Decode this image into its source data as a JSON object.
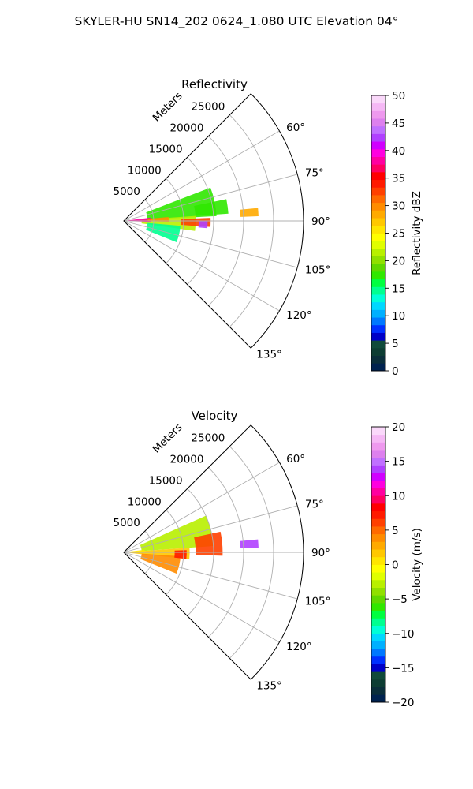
{
  "figure_title": "SKYLER-HU  SN14_202  0624_1.080 UTC Elevation 04°",
  "chart_data": [
    {
      "type": "polar-sector",
      "title": "Reflectivity",
      "theta_range_deg": [
        45,
        135
      ],
      "r_range": [
        0,
        30000
      ],
      "r_ticks": [
        5000,
        10000,
        15000,
        20000,
        25000
      ],
      "theta_ticks": [
        60,
        75,
        90,
        105,
        120,
        135
      ],
      "theta_tick_labels": [
        "60°",
        "75°",
        "90°",
        "105°",
        "120°",
        "135°"
      ],
      "r_label": "Meters",
      "grid": true,
      "colorbar": {
        "label": "Reflectivity dBZ",
        "min": 0,
        "max": 50,
        "ticks": [
          0,
          5,
          10,
          15,
          20,
          25,
          30,
          35,
          40,
          45,
          50
        ],
        "colors": [
          "#00224f",
          "#0a2e3a",
          "#0d3d33",
          "#104a3a",
          "#0000c8",
          "#0030ff",
          "#0078ff",
          "#00b0ff",
          "#00d8ff",
          "#00ffd8",
          "#00ff90",
          "#00ff40",
          "#30e800",
          "#60d800",
          "#90e000",
          "#b8f000",
          "#e0ff00",
          "#ffff00",
          "#ffe600",
          "#ffc800",
          "#ffaa00",
          "#ff8c00",
          "#ff6a00",
          "#ff4000",
          "#ff1a00",
          "#ff0000",
          "#ff0060",
          "#ff00a0",
          "#ff00e0",
          "#d000ff",
          "#b040ff",
          "#c070ff",
          "#dd80ee",
          "#ee99ee",
          "#f5b8f5",
          "#fad8fa"
        ]
      },
      "echo_regions": [
        {
          "theta": [
            69,
            87
          ],
          "r": [
            4000,
            15500
          ],
          "value": 18
        },
        {
          "theta": [
            86,
            98
          ],
          "r": [
            3000,
            12000
          ],
          "value": 22
        },
        {
          "theta": [
            95,
            112
          ],
          "r": [
            4000,
            9500
          ],
          "value": 14
        },
        {
          "theta": [
            78,
            86
          ],
          "r": [
            12000,
            17500
          ],
          "value": 18
        },
        {
          "theta": [
            83,
            92
          ],
          "r": [
            800,
            4500
          ],
          "value": 38
        },
        {
          "theta": [
            88,
            94
          ],
          "r": [
            9500,
            14500
          ],
          "value": 33
        },
        {
          "theta": [
            90,
            95
          ],
          "r": [
            12500,
            14000
          ],
          "value": 42
        },
        {
          "theta": [
            85,
            91
          ],
          "r": [
            4000,
            7500
          ],
          "value": 30
        },
        {
          "theta": [
            84.5,
            88
          ],
          "r": [
            19500,
            22500
          ],
          "value": 29
        }
      ]
    },
    {
      "type": "polar-sector",
      "title": "Velocity",
      "theta_range_deg": [
        45,
        135
      ],
      "r_range": [
        0,
        30000
      ],
      "r_ticks": [
        5000,
        10000,
        15000,
        20000,
        25000
      ],
      "theta_ticks": [
        60,
        75,
        90,
        105,
        120,
        135
      ],
      "theta_tick_labels": [
        "60°",
        "75°",
        "90°",
        "105°",
        "120°",
        "135°"
      ],
      "r_label": "Meters",
      "grid": true,
      "colorbar": {
        "label": "Velocity (m/s)",
        "min": -20,
        "max": 20,
        "ticks": [
          -20,
          -15,
          -10,
          -5,
          0,
          5,
          10,
          15,
          20
        ],
        "colors": [
          "#00224f",
          "#0a2e3a",
          "#0d3d33",
          "#104a3a",
          "#0000c8",
          "#0030ff",
          "#0078ff",
          "#00b0ff",
          "#00d8ff",
          "#00ffd8",
          "#00ff90",
          "#00ff40",
          "#30e800",
          "#60d800",
          "#90e000",
          "#b8f000",
          "#e0ff00",
          "#ffff00",
          "#ffe600",
          "#ffc800",
          "#ffaa00",
          "#ff8c00",
          "#ff6a00",
          "#ff4000",
          "#ff1a00",
          "#ff0000",
          "#ff0060",
          "#ff00a0",
          "#ff00e0",
          "#d000ff",
          "#b040ff",
          "#c070ff",
          "#dd80ee",
          "#ee99ee",
          "#f5b8f5",
          "#fad8fa"
        ]
      },
      "echo_regions": [
        {
          "theta": [
            66,
            86
          ],
          "r": [
            3000,
            15000
          ],
          "value": -3
        },
        {
          "theta": [
            86,
            96
          ],
          "r": [
            1000,
            11000
          ],
          "value": 2
        },
        {
          "theta": [
            94,
            112
          ],
          "r": [
            3000,
            9500
          ],
          "value": 4
        },
        {
          "theta": [
            78,
            92
          ],
          "r": [
            12000,
            16500
          ],
          "value": 6
        },
        {
          "theta": [
            83,
            92
          ],
          "r": [
            500,
            3500
          ],
          "value": 0
        },
        {
          "theta": [
            88,
            96
          ],
          "r": [
            8500,
            10500
          ],
          "value": 7
        },
        {
          "theta": [
            84.5,
            88
          ],
          "r": [
            19500,
            22500
          ],
          "value": 14
        }
      ]
    }
  ]
}
